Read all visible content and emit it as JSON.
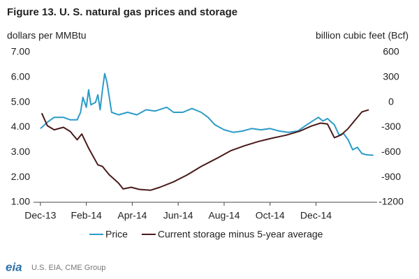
{
  "chart_data": {
    "type": "line",
    "title": "Figure 13. U. S. natural gas prices and storage",
    "ylabel": "dollars per MMBtu",
    "y2label": "billion cubic feet (Bcf)",
    "source": "U.S. EIA, CME Group",
    "logo": "eia",
    "xlim": [
      -0.3,
      14.6
    ],
    "xticks": [
      {
        "value": 0,
        "label": "Dec-13"
      },
      {
        "value": 2,
        "label": "Feb-14"
      },
      {
        "value": 4,
        "label": "Apr-14"
      },
      {
        "value": 6,
        "label": "Jun-14"
      },
      {
        "value": 8,
        "label": "Aug-14"
      },
      {
        "value": 10,
        "label": "Oct-14"
      },
      {
        "value": 12,
        "label": "Dec-14"
      }
    ],
    "ylim": [
      1,
      7
    ],
    "yticks": [
      {
        "value": 1,
        "label": "1.00"
      },
      {
        "value": 2,
        "label": "2.00"
      },
      {
        "value": 3,
        "label": "3.00"
      },
      {
        "value": 4,
        "label": "4.00"
      },
      {
        "value": 5,
        "label": "5.00"
      },
      {
        "value": 6,
        "label": "6.00"
      },
      {
        "value": 7,
        "label": "7.00"
      }
    ],
    "y2lim": [
      -1200,
      600
    ],
    "y2ticks": [
      -1200,
      -900,
      -600,
      -300,
      0,
      300,
      600
    ],
    "grid": false,
    "series": [
      {
        "name": "Price",
        "color": "#2b9cc8",
        "x": [
          0,
          0.3,
          0.6,
          1.0,
          1.3,
          1.6,
          1.75,
          1.85,
          2.0,
          2.1,
          2.2,
          2.4,
          2.5,
          2.6,
          2.7,
          2.8,
          2.9,
          3.1,
          3.4,
          3.8,
          4.2,
          4.6,
          5.0,
          5.5,
          5.8,
          6.2,
          6.6,
          7.0,
          7.3,
          7.6,
          8.0,
          8.4,
          8.8,
          9.2,
          9.6,
          10.0,
          10.4,
          10.8,
          11.2,
          11.6,
          12.1,
          12.3,
          12.5,
          12.8,
          13.0,
          13.2,
          13.4,
          13.6,
          13.8,
          14.0,
          14.2,
          14.5
        ],
        "values": [
          3.95,
          4.2,
          4.4,
          4.4,
          4.3,
          4.3,
          4.6,
          5.2,
          4.8,
          5.5,
          4.9,
          5.0,
          5.3,
          4.7,
          5.5,
          6.15,
          5.8,
          4.6,
          4.5,
          4.6,
          4.5,
          4.7,
          4.65,
          4.8,
          4.6,
          4.6,
          4.75,
          4.6,
          4.4,
          4.1,
          3.9,
          3.8,
          3.85,
          3.95,
          3.9,
          3.95,
          3.85,
          3.8,
          3.85,
          4.1,
          4.4,
          4.25,
          4.35,
          4.1,
          3.7,
          3.75,
          3.5,
          3.1,
          3.2,
          2.95,
          2.9,
          2.88
        ]
      },
      {
        "name": "Current storage minus 5-year average",
        "color": "#4a1a1c",
        "axis": "y2",
        "x": [
          0.06,
          0.3,
          0.6,
          1.0,
          1.3,
          1.6,
          1.8,
          2.1,
          2.5,
          2.7,
          3.0,
          3.4,
          3.6,
          3.95,
          4.3,
          4.8,
          5.2,
          5.8,
          6.4,
          7.0,
          7.7,
          8.3,
          8.9,
          9.5,
          10.1,
          10.7,
          11.3,
          11.8,
          12.2,
          12.5,
          12.8,
          13.1,
          13.4,
          13.7,
          14.0,
          14.3
        ],
        "values": [
          -130,
          -280,
          -330,
          -300,
          -350,
          -450,
          -380,
          -550,
          -750,
          -770,
          -870,
          -970,
          -1040,
          -1020,
          -1045,
          -1055,
          -1020,
          -955,
          -870,
          -770,
          -670,
          -580,
          -520,
          -470,
          -430,
          -395,
          -345,
          -285,
          -250,
          -260,
          -425,
          -390,
          -315,
          -215,
          -115,
          -90
        ]
      }
    ]
  }
}
